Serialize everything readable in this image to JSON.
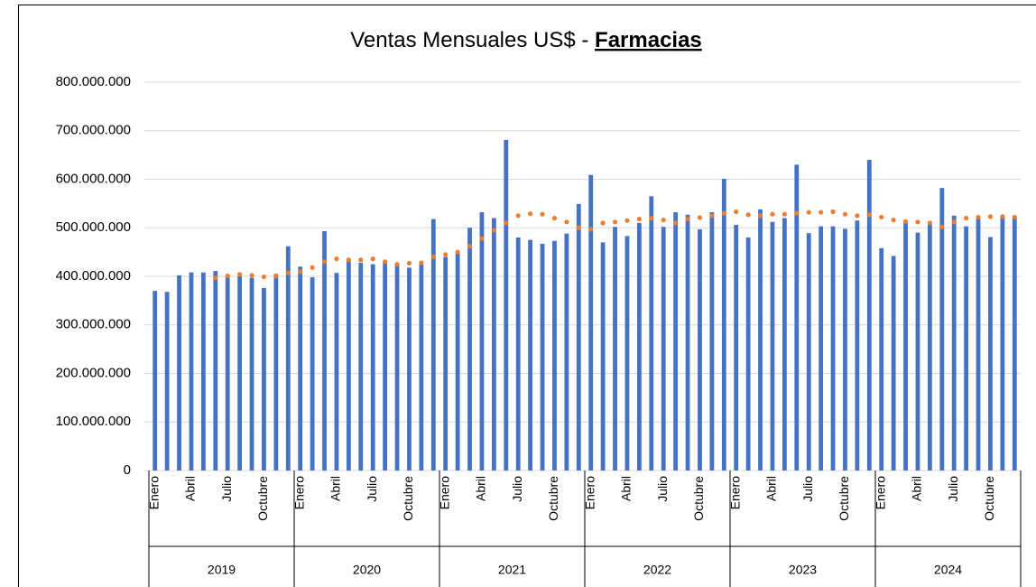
{
  "chart_data": {
    "type": "bar",
    "title": "Ventas Mensuales US$ -",
    "title_emphasis": "Farmacias",
    "categories": [
      "Enero",
      null,
      null,
      "Abril",
      null,
      null,
      "Julio",
      null,
      null,
      "Octubre",
      null,
      null,
      "Enero",
      null,
      null,
      "Abril",
      null,
      null,
      "Julio",
      null,
      null,
      "Octubre",
      null,
      null,
      "Enero",
      null,
      null,
      "Abril",
      null,
      null,
      "Julio",
      null,
      null,
      "Octubre",
      null,
      null,
      "Enero",
      null,
      null,
      "Abril",
      null,
      null,
      "Julio",
      null,
      null,
      "Octubre",
      null,
      null,
      "Enero",
      null,
      null,
      "Abril",
      null,
      null,
      "Julio",
      null,
      null,
      "Octubre",
      null,
      null,
      "Enero",
      null,
      null,
      "Abril",
      null,
      null,
      "Julio",
      null,
      null,
      "Octubre",
      null,
      null
    ],
    "groups": [
      "2019",
      "2020",
      "2021",
      "2022",
      "2023",
      "2024"
    ],
    "series": [
      {
        "type": "bar",
        "color": "#4472c4",
        "values": [
          370000000,
          368000000,
          402000000,
          408000000,
          408000000,
          411000000,
          400000000,
          400000000,
          397000000,
          376000000,
          405000000,
          462000000,
          420000000,
          398000000,
          493000000,
          407000000,
          432000000,
          428000000,
          425000000,
          430000000,
          425000000,
          418000000,
          425000000,
          518000000,
          440000000,
          448000000,
          500000000,
          532000000,
          520000000,
          681000000,
          480000000,
          475000000,
          467000000,
          473000000,
          488000000,
          549000000,
          609000000,
          470000000,
          502000000,
          483000000,
          510000000,
          565000000,
          502000000,
          532000000,
          527000000,
          497000000,
          532000000,
          601000000,
          506000000,
          480000000,
          538000000,
          512000000,
          520000000,
          630000000,
          489000000,
          503000000,
          503000000,
          498000000,
          515000000,
          640000000,
          458000000,
          442000000,
          515000000,
          490000000,
          508000000,
          582000000,
          525000000,
          503000000,
          520000000,
          481000000,
          522000000,
          524000000
        ]
      },
      {
        "type": "dotted-line",
        "color": "#ed7d31",
        "values": [
          null,
          null,
          null,
          null,
          null,
          397000000,
          401000000,
          404000000,
          402000000,
          399000000,
          401000000,
          407000000,
          410000000,
          418000000,
          430000000,
          436000000,
          434000000,
          434000000,
          436000000,
          430000000,
          425000000,
          427000000,
          428000000,
          440000000,
          445000000,
          450000000,
          462000000,
          478000000,
          495000000,
          510000000,
          525000000,
          529000000,
          528000000,
          520000000,
          512000000,
          500000000,
          497000000,
          510000000,
          512000000,
          515000000,
          518000000,
          520000000,
          516000000,
          510000000,
          518000000,
          521000000,
          525000000,
          530000000,
          533000000,
          527000000,
          525000000,
          528000000,
          528000000,
          530000000,
          532000000,
          532000000,
          533000000,
          528000000,
          525000000,
          527000000,
          522000000,
          516000000,
          513000000,
          512000000,
          510000000,
          502000000,
          512000000,
          520000000,
          522000000,
          523000000,
          523000000,
          522000000
        ]
      }
    ],
    "ylim": [
      0,
      800000000
    ],
    "yticks": [
      0,
      {
        "value": 100000000,
        "label": "100.000.000"
      },
      {
        "value": 200000000,
        "label": "200.000.000"
      },
      {
        "value": 300000000,
        "label": "300.000.000"
      },
      {
        "value": 400000000,
        "label": "400.000.000"
      },
      {
        "value": 500000000,
        "label": "500.000.000"
      },
      {
        "value": 600000000,
        "label": "600.000.000"
      },
      {
        "value": 700000000,
        "label": "700.000.000"
      },
      {
        "value": 800000000,
        "label": "800.000.000"
      }
    ],
    "grid": true
  }
}
